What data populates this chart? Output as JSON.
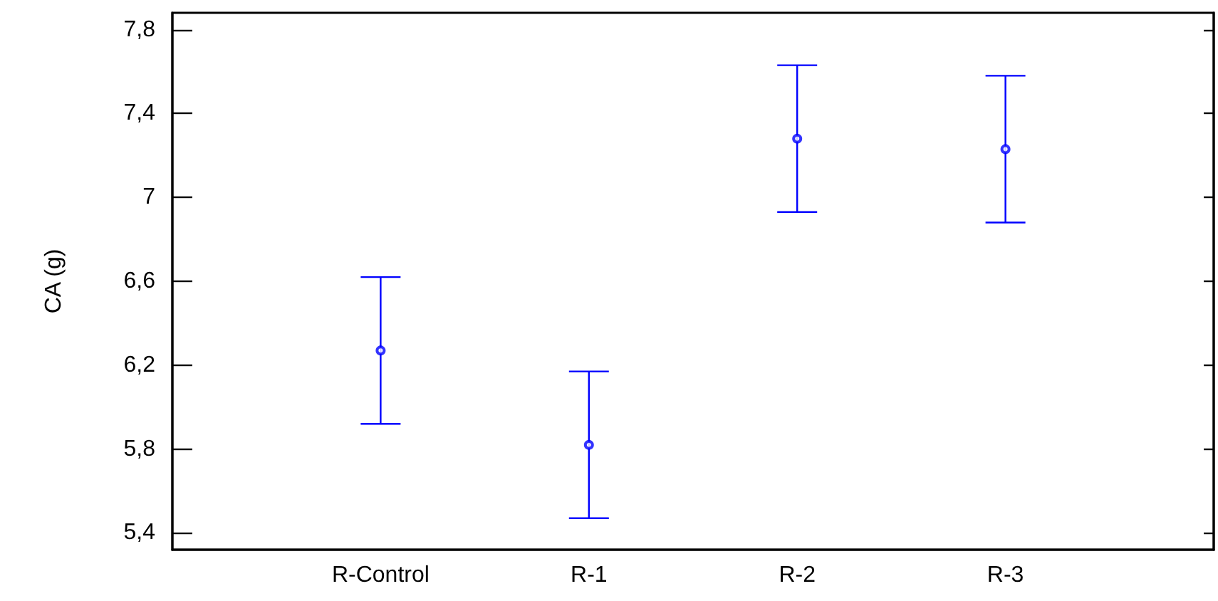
{
  "chart_data": {
    "type": "scatter",
    "ylabel": "CA (g)",
    "categories": [
      "R-Control",
      "R-1",
      "R-2",
      "R-3"
    ],
    "series": [
      {
        "color": "#0000ff",
        "values": [
          6.27,
          5.82,
          7.28,
          7.23
        ],
        "errors": [
          0.35,
          0.35,
          0.35,
          0.35
        ]
      }
    ],
    "ylim": [
      5.32,
      7.88
    ],
    "yticks": [
      {
        "value": 5.4,
        "label": "5,4"
      },
      {
        "value": 5.8,
        "label": "5,8"
      },
      {
        "value": 6.2,
        "label": "6,2"
      },
      {
        "value": 6.6,
        "label": "6,6"
      },
      {
        "value": 7,
        "label": "7"
      },
      {
        "value": 7.4,
        "label": "7,4"
      },
      {
        "value": 7.8,
        "label": "7,8"
      }
    ],
    "marker": "circle",
    "grid": false
  }
}
